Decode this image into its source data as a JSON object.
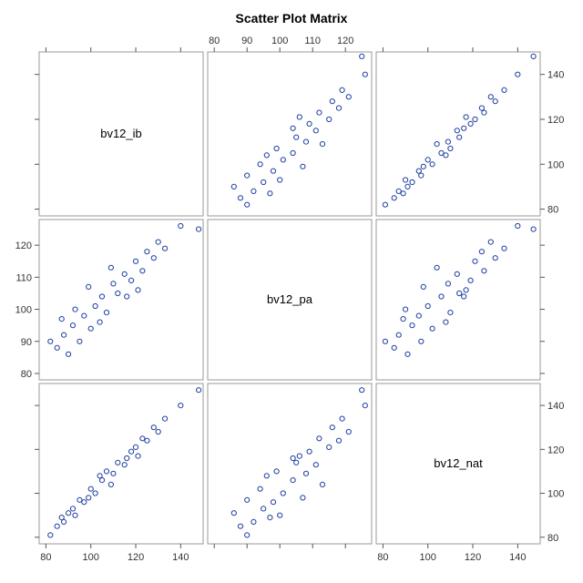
{
  "chart_data": {
    "type": "scatter",
    "title": "Scatter Plot Matrix",
    "variables": [
      "bv12_ib",
      "bv12_pa",
      "bv12_nat"
    ],
    "axis_ticks": {
      "bv12_ib": [
        80,
        100,
        120,
        140
      ],
      "bv12_pa": [
        80,
        90,
        100,
        110,
        120
      ],
      "bv12_nat": [
        80,
        100,
        120,
        140
      ]
    },
    "axis_ranges": {
      "bv12_ib": [
        77,
        150
      ],
      "bv12_pa": [
        78,
        128
      ],
      "bv12_nat": [
        77,
        150
      ]
    },
    "point_color": "#1f3f9f",
    "grid": false,
    "sample_points": [
      {
        "ib": 82,
        "pa": 90,
        "nat": 81
      },
      {
        "ib": 85,
        "pa": 88,
        "nat": 85
      },
      {
        "ib": 88,
        "pa": 92,
        "nat": 87
      },
      {
        "ib": 90,
        "pa": 86,
        "nat": 91
      },
      {
        "ib": 92,
        "pa": 95,
        "nat": 93
      },
      {
        "ib": 95,
        "pa": 90,
        "nat": 97
      },
      {
        "ib": 97,
        "pa": 98,
        "nat": 96
      },
      {
        "ib": 100,
        "pa": 94,
        "nat": 102
      },
      {
        "ib": 102,
        "pa": 101,
        "nat": 100
      },
      {
        "ib": 105,
        "pa": 104,
        "nat": 106
      },
      {
        "ib": 107,
        "pa": 99,
        "nat": 110
      },
      {
        "ib": 110,
        "pa": 108,
        "nat": 109
      },
      {
        "ib": 112,
        "pa": 105,
        "nat": 114
      },
      {
        "ib": 115,
        "pa": 111,
        "nat": 113
      },
      {
        "ib": 118,
        "pa": 109,
        "nat": 119
      },
      {
        "ib": 120,
        "pa": 115,
        "nat": 121
      },
      {
        "ib": 123,
        "pa": 112,
        "nat": 125
      },
      {
        "ib": 125,
        "pa": 118,
        "nat": 124
      },
      {
        "ib": 128,
        "pa": 116,
        "nat": 130
      },
      {
        "ib": 130,
        "pa": 121,
        "nat": 128
      },
      {
        "ib": 133,
        "pa": 119,
        "nat": 134
      },
      {
        "ib": 140,
        "pa": 126,
        "nat": 140
      },
      {
        "ib": 148,
        "pa": 125,
        "nat": 147
      },
      {
        "ib": 93,
        "pa": 100,
        "nat": 90
      },
      {
        "ib": 104,
        "pa": 96,
        "nat": 108
      },
      {
        "ib": 116,
        "pa": 104,
        "nat": 116
      },
      {
        "ib": 99,
        "pa": 107,
        "nat": 98
      },
      {
        "ib": 109,
        "pa": 113,
        "nat": 104
      },
      {
        "ib": 121,
        "pa": 106,
        "nat": 117
      },
      {
        "ib": 87,
        "pa": 97,
        "nat": 89
      }
    ]
  }
}
